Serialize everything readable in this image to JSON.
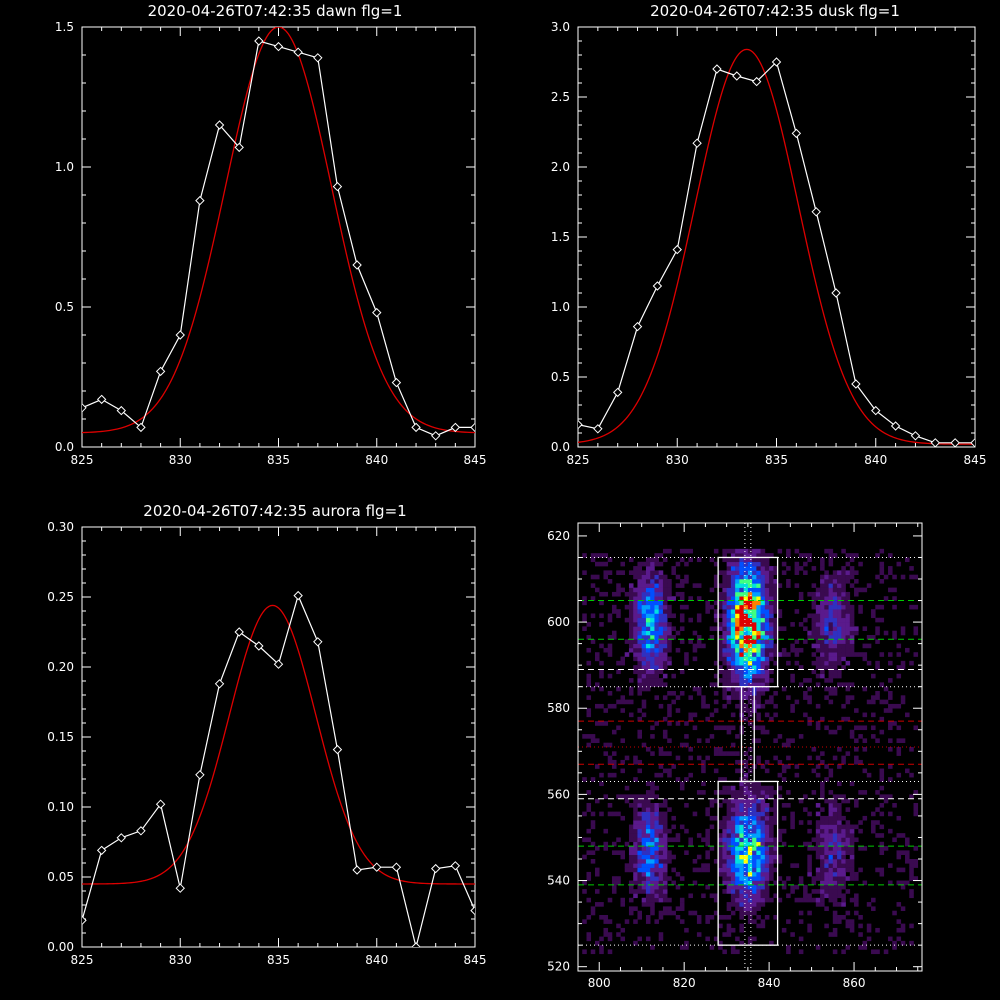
{
  "colors": {
    "background": "#000000",
    "axis": "#ffffff",
    "data_line": "#ffffff",
    "fit_line": "#dd0000",
    "green_dash": "#00cc00",
    "white_dash": "#ffffff",
    "red_dash": "#cc0000"
  },
  "chart_data": [
    {
      "type": "line",
      "title": "2020-04-26T07:42:35 dawn flg=1",
      "xlabel": "",
      "ylabel": "",
      "xlim": [
        825,
        845
      ],
      "ylim": [
        0.0,
        1.5
      ],
      "x_ticks": [
        "825",
        "830",
        "835",
        "840",
        "845"
      ],
      "y_ticks": [
        "0.0",
        "0.5",
        "1.0",
        "1.5"
      ],
      "grid": false,
      "series": [
        {
          "kind": "data",
          "marker": "diamond",
          "x": [
            825,
            826,
            827,
            828,
            829,
            830,
            831,
            832,
            833,
            834,
            835,
            836,
            837,
            838,
            839,
            840,
            841,
            842,
            843,
            844,
            845
          ],
          "y": [
            0.14,
            0.17,
            0.13,
            0.07,
            0.27,
            0.4,
            0.88,
            1.15,
            1.07,
            1.45,
            1.43,
            1.41,
            1.39,
            0.93,
            0.65,
            0.48,
            0.23,
            0.07,
            0.04,
            0.07,
            0.07
          ]
        },
        {
          "kind": "fit",
          "gaussian": {
            "amplitude": 1.45,
            "center": 835.0,
            "sigma": 2.7,
            "offset": 0.05
          }
        }
      ]
    },
    {
      "type": "line",
      "title": "2020-04-26T07:42:35 dusk flg=1",
      "xlabel": "",
      "ylabel": "",
      "xlim": [
        825,
        845
      ],
      "ylim": [
        0.0,
        3.0
      ],
      "x_ticks": [
        "825",
        "830",
        "835",
        "840",
        "845"
      ],
      "y_ticks": [
        "0.0",
        "0.5",
        "1.0",
        "1.5",
        "2.0",
        "2.5",
        "3.0"
      ],
      "grid": false,
      "series": [
        {
          "kind": "data",
          "marker": "diamond",
          "x": [
            825,
            826,
            827,
            828,
            829,
            830,
            831,
            832,
            833,
            834,
            835,
            836,
            837,
            838,
            839,
            840,
            841,
            842,
            843,
            844,
            845
          ],
          "y": [
            0.16,
            0.13,
            0.39,
            0.86,
            1.15,
            1.41,
            2.17,
            2.7,
            2.65,
            2.61,
            2.75,
            2.24,
            1.68,
            1.1,
            0.45,
            0.26,
            0.15,
            0.08,
            0.03,
            0.03,
            0.03
          ]
        },
        {
          "kind": "fit",
          "gaussian": {
            "amplitude": 2.82,
            "center": 833.5,
            "sigma": 2.6,
            "offset": 0.02
          }
        }
      ]
    },
    {
      "type": "line",
      "title": "2020-04-26T07:42:35 aurora flg=1",
      "xlabel": "",
      "ylabel": "",
      "xlim": [
        825,
        845
      ],
      "ylim": [
        0.0,
        0.3
      ],
      "x_ticks": [
        "825",
        "830",
        "835",
        "840",
        "845"
      ],
      "y_ticks": [
        "0.00",
        "0.05",
        "0.10",
        "0.15",
        "0.20",
        "0.25",
        "0.30"
      ],
      "grid": false,
      "series": [
        {
          "kind": "data",
          "marker": "diamond",
          "x": [
            825,
            826,
            827,
            828,
            829,
            830,
            831,
            832,
            833,
            834,
            835,
            836,
            837,
            838,
            839,
            840,
            841,
            842,
            843,
            844,
            845
          ],
          "y": [
            0.019,
            0.069,
            0.078,
            0.083,
            0.102,
            0.042,
            0.123,
            0.188,
            0.225,
            0.215,
            0.202,
            0.251,
            0.218,
            0.141,
            0.055,
            0.057,
            0.057,
            0.0,
            0.056,
            0.058,
            0.026
          ]
        },
        {
          "kind": "fit",
          "gaussian": {
            "amplitude": 0.199,
            "center": 834.7,
            "sigma": 2.2,
            "offset": 0.045
          }
        }
      ]
    },
    {
      "type": "heatmap",
      "title": "",
      "xlabel": "",
      "ylabel": "",
      "xlim": [
        795,
        876
      ],
      "ylim": [
        519,
        623
      ],
      "x_ticks": [
        "800",
        "820",
        "840",
        "860"
      ],
      "y_ticks": [
        "520",
        "540",
        "560",
        "580",
        "600",
        "620"
      ],
      "colormap": [
        "#000000",
        "#3a0a50",
        "#5a1a8c",
        "#3030c0",
        "#0050ff",
        "#00a0ff",
        "#00e0e0",
        "#40ff80",
        "#ffff00",
        "#ff8000",
        "#e00000"
      ],
      "blobs": [
        {
          "x": 835,
          "y": 600,
          "sx": 3.0,
          "sy": 8.5,
          "amp": 1.0
        },
        {
          "x": 835,
          "y": 547,
          "sx": 3.2,
          "sy": 7.5,
          "amp": 0.62
        },
        {
          "x": 812,
          "y": 600,
          "sx": 2.5,
          "sy": 7.5,
          "amp": 0.48
        },
        {
          "x": 812,
          "y": 547,
          "sx": 2.5,
          "sy": 7.0,
          "amp": 0.38
        },
        {
          "x": 855,
          "y": 600,
          "sx": 3.0,
          "sy": 7.5,
          "amp": 0.24
        },
        {
          "x": 855,
          "y": 546,
          "sx": 3.0,
          "sy": 7.5,
          "amp": 0.2
        }
      ],
      "boxes": [
        {
          "x0": 828,
          "x1": 842,
          "y0": 585,
          "y1": 615
        },
        {
          "x0": 828,
          "x1": 842,
          "y0": 525,
          "y1": 563
        },
        {
          "x0": 833.5,
          "x1": 836.5,
          "y0": 563,
          "y1": 585
        }
      ],
      "hlines": [
        {
          "y": 615,
          "style": "dotted",
          "color": "white"
        },
        {
          "y": 605,
          "style": "dashed",
          "color": "green"
        },
        {
          "y": 596,
          "style": "dashed",
          "color": "green"
        },
        {
          "y": 589,
          "style": "dashed",
          "color": "white"
        },
        {
          "y": 585,
          "style": "dotted",
          "color": "white"
        },
        {
          "y": 577,
          "style": "dashed",
          "color": "red"
        },
        {
          "y": 571,
          "style": "dotted",
          "color": "red"
        },
        {
          "y": 567,
          "style": "dashed",
          "color": "red"
        },
        {
          "y": 563,
          "style": "dotted",
          "color": "white"
        },
        {
          "y": 559,
          "style": "dashed",
          "color": "white"
        },
        {
          "y": 548,
          "style": "dashed",
          "color": "green"
        },
        {
          "y": 539,
          "style": "dashed",
          "color": "green"
        },
        {
          "y": 525,
          "style": "dotted",
          "color": "white"
        }
      ],
      "vlines": [
        {
          "x": 834.3,
          "style": "dotted",
          "color": "white"
        },
        {
          "x": 835.7,
          "style": "dotted",
          "color": "white"
        }
      ]
    }
  ]
}
